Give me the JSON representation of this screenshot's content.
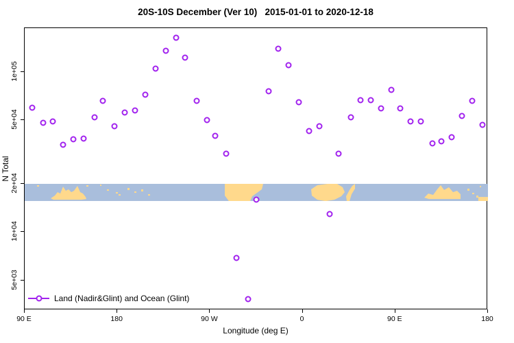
{
  "title": "20S-10S December (Ver 10)   2015-01-01 to 2020-12-18",
  "colors": {
    "marker": "#A122EE",
    "ocean": "#A9BEDC",
    "land": "#FFD98C",
    "axis": "#000000"
  },
  "legend": {
    "label": "Land (Nadir&Glint) and Ocean (Glint)"
  },
  "chart_data": {
    "type": "scatter",
    "title": "20S-10S December (Ver 10)   2015-01-01 to 2020-12-18",
    "xlabel": "Longitude (deg E)",
    "ylabel": "N Total",
    "x_axis": {
      "range": [
        90,
        540
      ],
      "ticks": [
        {
          "value": 90,
          "label": "90 E"
        },
        {
          "value": 180,
          "label": "180"
        },
        {
          "value": 270,
          "label": "90 W"
        },
        {
          "value": 360,
          "label": "0"
        },
        {
          "value": 450,
          "label": "90 E"
        },
        {
          "value": 540,
          "label": "180"
        }
      ]
    },
    "y_axis": {
      "scale": "log",
      "range": [
        3260,
        188000
      ],
      "ticks": [
        {
          "value": 5000,
          "label": "5e+03"
        },
        {
          "value": 10000,
          "label": "1e+04"
        },
        {
          "value": 20000,
          "label": "2e+04"
        },
        {
          "value": 50000,
          "label": "5e+04"
        },
        {
          "value": 100000,
          "label": "1e+05"
        }
      ]
    },
    "series": [
      {
        "name": "Land (Nadir&Glint) and Ocean (Glint)",
        "marker": "open-circle",
        "points": [
          [
            97,
            60000
          ],
          [
            108,
            48000
          ],
          [
            117,
            49000
          ],
          [
            127,
            35000
          ],
          [
            137,
            38000
          ],
          [
            147,
            38500
          ],
          [
            158,
            52000
          ],
          [
            166,
            66000
          ],
          [
            177,
            46000
          ],
          [
            187,
            56000
          ],
          [
            197,
            57500
          ],
          [
            207,
            72000
          ],
          [
            217,
            105000
          ],
          [
            227,
            136000
          ],
          [
            237,
            164000
          ],
          [
            246,
            123000
          ],
          [
            257,
            66000
          ],
          [
            267,
            50000
          ],
          [
            275,
            40000
          ],
          [
            286,
            31000
          ],
          [
            296,
            6900
          ],
          [
            307,
            3800
          ],
          [
            315,
            16000
          ],
          [
            327,
            76000
          ],
          [
            336,
            140000
          ],
          [
            346,
            110000
          ],
          [
            356,
            65000
          ],
          [
            366,
            43000
          ],
          [
            376,
            46000
          ],
          [
            386,
            13000
          ],
          [
            395,
            31000
          ],
          [
            407,
            52000
          ],
          [
            416,
            67000
          ],
          [
            426,
            67000
          ],
          [
            436,
            59000
          ],
          [
            446,
            77000
          ],
          [
            455,
            59000
          ],
          [
            465,
            49000
          ],
          [
            475,
            49000
          ],
          [
            486,
            36000
          ],
          [
            495,
            37000
          ],
          [
            505,
            39000
          ],
          [
            515,
            53000
          ],
          [
            525,
            66000
          ],
          [
            535,
            47000
          ]
        ]
      }
    ],
    "map_strip": {
      "description": "Land/ocean world band for 20S-10S latitude",
      "top_value": 20000,
      "bottom_value": 15600,
      "land_polygons": [
        "38,21 44,17 48,12 52,14 56,4 60,10 64,8 68,12 72,10 77,3 81,12 85,14 89,19 90,22 83,23 42,23",
        "292,0 348,0 346,8 339,13 332,18 329,25 298,25 292,17",
        "418,8 427,2 442,0 456,0 464,5 467,12 462,18 452,23 439,25 427,23 419,17",
        "469,18 474,9 478,3 482,0 482,7 477,15 474,25 470,25",
        "583,20 589,14 596,16 602,8 607,2 612,9 619,5 625,12 631,10 636,15 636,22 590,22"
      ],
      "land_rects": [
        [
          18,
          2,
          3,
          2
        ],
        [
          90,
          2,
          3,
          2
        ],
        [
          110,
          1,
          2,
          2
        ],
        [
          120,
          8,
          3,
          2
        ],
        [
          133,
          12,
          3,
          2
        ],
        [
          137,
          15,
          3,
          2
        ],
        [
          150,
          6,
          3,
          3
        ],
        [
          160,
          11,
          3,
          2
        ],
        [
          170,
          8,
          3,
          3
        ],
        [
          180,
          15,
          3,
          2
        ],
        [
          646,
          7,
          3,
          3
        ],
        [
          653,
          13,
          3,
          2
        ],
        [
          659,
          17,
          3,
          3
        ],
        [
          664,
          3,
          2,
          2
        ],
        [
          662,
          19,
          14,
          6
        ]
      ]
    }
  }
}
